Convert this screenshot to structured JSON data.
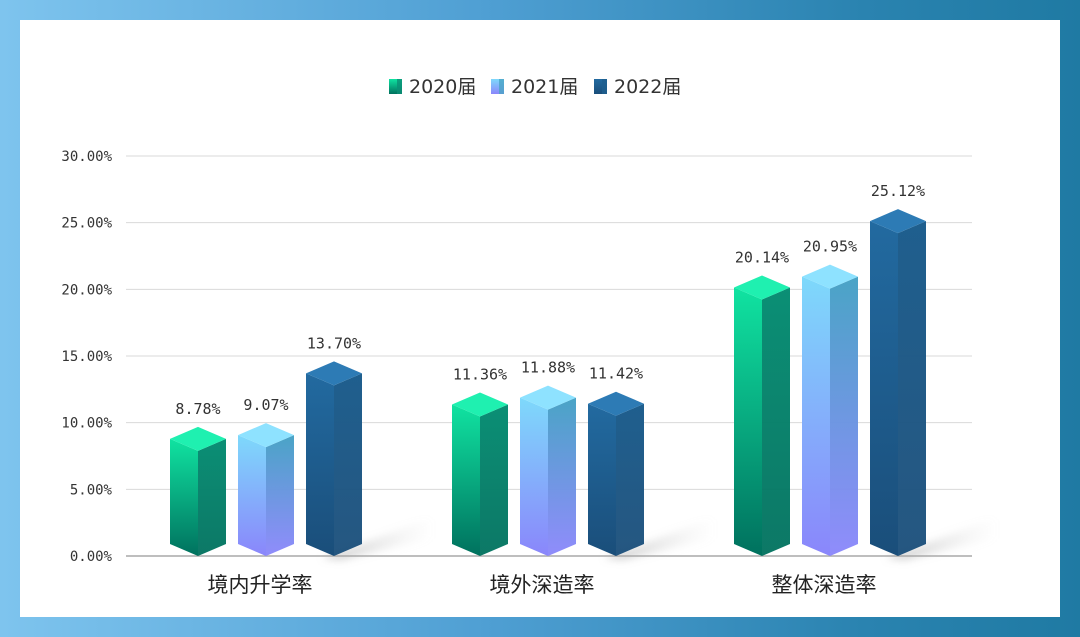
{
  "chart_data": {
    "type": "bar",
    "categories": [
      "境内升学率",
      "境外深造率",
      "整体深造率"
    ],
    "series": [
      {
        "name": "2020届",
        "values": [
          8.78,
          11.36,
          20.14
        ],
        "labels": [
          "8.78%",
          "11.36%",
          "20.14%"
        ]
      },
      {
        "name": "2021届",
        "values": [
          9.07,
          11.88,
          20.95
        ],
        "labels": [
          "9.07%",
          "11.88%",
          "20.95%"
        ]
      },
      {
        "name": "2022届",
        "values": [
          13.7,
          11.42,
          25.12
        ],
        "labels": [
          "13.70%",
          "11.42%",
          "25.12%"
        ]
      }
    ],
    "ylim": [
      0,
      30
    ],
    "yticks": [
      0,
      5,
      10,
      15,
      20,
      25,
      30
    ],
    "ytick_labels": [
      "0.00%",
      "5.00%",
      "10.00%",
      "15.00%",
      "20.00%",
      "25.00%",
      "30.00%"
    ],
    "grid": true,
    "legend_position": "top-center",
    "colors": {
      "2020届": {
        "front_top": "#10e3a1",
        "front_bottom": "#00715e",
        "side": "#0b8f75",
        "top": "#1ff0b0"
      },
      "2021届": {
        "front_top": "#7ed9fb",
        "front_bottom": "#8a86fb",
        "side": "#4aa4c6",
        "top": "#8ee2ff"
      },
      "2022届": {
        "front_top": "#226aa0",
        "front_bottom": "#1a4e7a",
        "side": "#1f5f8e",
        "top": "#2d7bb5"
      }
    }
  }
}
